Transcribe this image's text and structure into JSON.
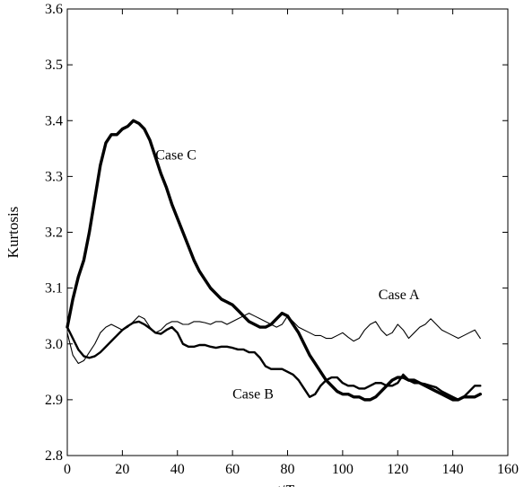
{
  "chart_data": {
    "type": "line",
    "title": "",
    "xlabel_main": "t",
    "xlabel_sep": "/",
    "xlabel_T": "T",
    "xlabel_sub": "p",
    "ylabel": "Kurtosis",
    "xlim": [
      0,
      160
    ],
    "ylim": [
      2.8,
      3.6
    ],
    "xticks": [
      0,
      20,
      40,
      60,
      80,
      100,
      120,
      140,
      160
    ],
    "yticks": [
      2.8,
      2.9,
      3.0,
      3.1,
      3.2,
      3.3,
      3.4,
      3.5,
      3.6
    ],
    "grid": false,
    "legend": "none",
    "annotations": [
      {
        "text": "Case C",
        "x": 32,
        "y": 3.33
      },
      {
        "text": "Case A",
        "x": 113,
        "y": 3.08
      },
      {
        "text": "Case B",
        "x": 60,
        "y": 2.902
      }
    ],
    "series": [
      {
        "name": "Case A",
        "line_weight": "thin",
        "x": [
          0,
          2,
          4,
          6,
          8,
          10,
          12,
          14,
          16,
          18,
          20,
          22,
          24,
          26,
          28,
          30,
          32,
          34,
          36,
          38,
          40,
          42,
          44,
          46,
          48,
          50,
          52,
          54,
          56,
          58,
          60,
          62,
          64,
          66,
          68,
          70,
          72,
          74,
          76,
          78,
          80,
          82,
          84,
          86,
          88,
          90,
          92,
          94,
          96,
          98,
          100,
          102,
          104,
          106,
          108,
          110,
          112,
          114,
          116,
          118,
          120,
          122,
          124,
          126,
          128,
          130,
          132,
          134,
          136,
          138,
          140,
          142,
          144,
          146,
          148,
          150
        ],
        "y": [
          3.02,
          2.98,
          2.965,
          2.97,
          2.985,
          3.0,
          3.02,
          3.03,
          3.035,
          3.03,
          3.025,
          3.03,
          3.04,
          3.05,
          3.045,
          3.03,
          3.02,
          3.025,
          3.035,
          3.04,
          3.04,
          3.035,
          3.035,
          3.04,
          3.04,
          3.038,
          3.035,
          3.04,
          3.04,
          3.035,
          3.04,
          3.045,
          3.05,
          3.055,
          3.05,
          3.045,
          3.04,
          3.035,
          3.03,
          3.035,
          3.05,
          3.04,
          3.03,
          3.025,
          3.02,
          3.015,
          3.015,
          3.01,
          3.01,
          3.015,
          3.02,
          3.012,
          3.005,
          3.01,
          3.025,
          3.035,
          3.04,
          3.025,
          3.015,
          3.02,
          3.035,
          3.025,
          3.01,
          3.02,
          3.03,
          3.035,
          3.045,
          3.035,
          3.025,
          3.02,
          3.015,
          3.01,
          3.015,
          3.02,
          3.025,
          3.01
        ]
      },
      {
        "name": "Case B",
        "line_weight": "medium",
        "x": [
          0,
          2,
          4,
          6,
          8,
          10,
          12,
          14,
          16,
          18,
          20,
          22,
          24,
          26,
          28,
          30,
          32,
          34,
          36,
          38,
          40,
          42,
          44,
          46,
          48,
          50,
          52,
          54,
          56,
          58,
          60,
          62,
          64,
          66,
          68,
          70,
          72,
          74,
          76,
          78,
          80,
          82,
          84,
          86,
          88,
          90,
          92,
          94,
          96,
          98,
          100,
          102,
          104,
          106,
          108,
          110,
          112,
          114,
          116,
          118,
          120,
          122,
          124,
          126,
          128,
          130,
          132,
          134,
          136,
          138,
          140,
          142,
          144,
          146,
          148,
          150
        ],
        "y": [
          3.03,
          3.01,
          2.99,
          2.978,
          2.975,
          2.978,
          2.985,
          2.995,
          3.005,
          3.015,
          3.025,
          3.032,
          3.038,
          3.04,
          3.035,
          3.028,
          3.02,
          3.018,
          3.025,
          3.03,
          3.02,
          3.0,
          2.995,
          2.995,
          2.998,
          2.998,
          2.995,
          2.993,
          2.995,
          2.995,
          2.993,
          2.99,
          2.99,
          2.985,
          2.985,
          2.975,
          2.96,
          2.955,
          2.955,
          2.955,
          2.95,
          2.945,
          2.935,
          2.92,
          2.905,
          2.91,
          2.925,
          2.935,
          2.94,
          2.94,
          2.93,
          2.925,
          2.925,
          2.92,
          2.92,
          2.925,
          2.93,
          2.93,
          2.925,
          2.925,
          2.93,
          2.945,
          2.935,
          2.93,
          2.93,
          2.928,
          2.925,
          2.922,
          2.915,
          2.91,
          2.905,
          2.9,
          2.905,
          2.915,
          2.925,
          2.925
        ]
      },
      {
        "name": "Case C",
        "line_weight": "thick",
        "x": [
          0,
          2,
          4,
          6,
          8,
          10,
          12,
          14,
          16,
          18,
          20,
          22,
          24,
          26,
          28,
          30,
          32,
          34,
          36,
          38,
          40,
          42,
          44,
          46,
          48,
          50,
          52,
          54,
          56,
          58,
          60,
          62,
          64,
          66,
          68,
          70,
          72,
          74,
          76,
          78,
          80,
          82,
          84,
          86,
          88,
          90,
          92,
          94,
          96,
          98,
          100,
          102,
          104,
          106,
          108,
          110,
          112,
          114,
          116,
          118,
          120,
          122,
          124,
          126,
          128,
          130,
          132,
          134,
          136,
          138,
          140,
          142,
          144,
          146,
          148,
          150
        ],
        "y": [
          3.03,
          3.08,
          3.12,
          3.15,
          3.2,
          3.26,
          3.32,
          3.36,
          3.375,
          3.375,
          3.385,
          3.39,
          3.4,
          3.395,
          3.385,
          3.365,
          3.335,
          3.305,
          3.28,
          3.25,
          3.225,
          3.2,
          3.175,
          3.15,
          3.13,
          3.115,
          3.1,
          3.09,
          3.08,
          3.075,
          3.07,
          3.06,
          3.05,
          3.04,
          3.035,
          3.03,
          3.03,
          3.035,
          3.045,
          3.055,
          3.05,
          3.035,
          3.02,
          3.0,
          2.98,
          2.965,
          2.95,
          2.935,
          2.925,
          2.915,
          2.91,
          2.91,
          2.905,
          2.905,
          2.9,
          2.9,
          2.905,
          2.915,
          2.925,
          2.935,
          2.94,
          2.94,
          2.935,
          2.935,
          2.93,
          2.925,
          2.92,
          2.915,
          2.91,
          2.905,
          2.9,
          2.9,
          2.905,
          2.905,
          2.905,
          2.91
        ]
      }
    ]
  }
}
